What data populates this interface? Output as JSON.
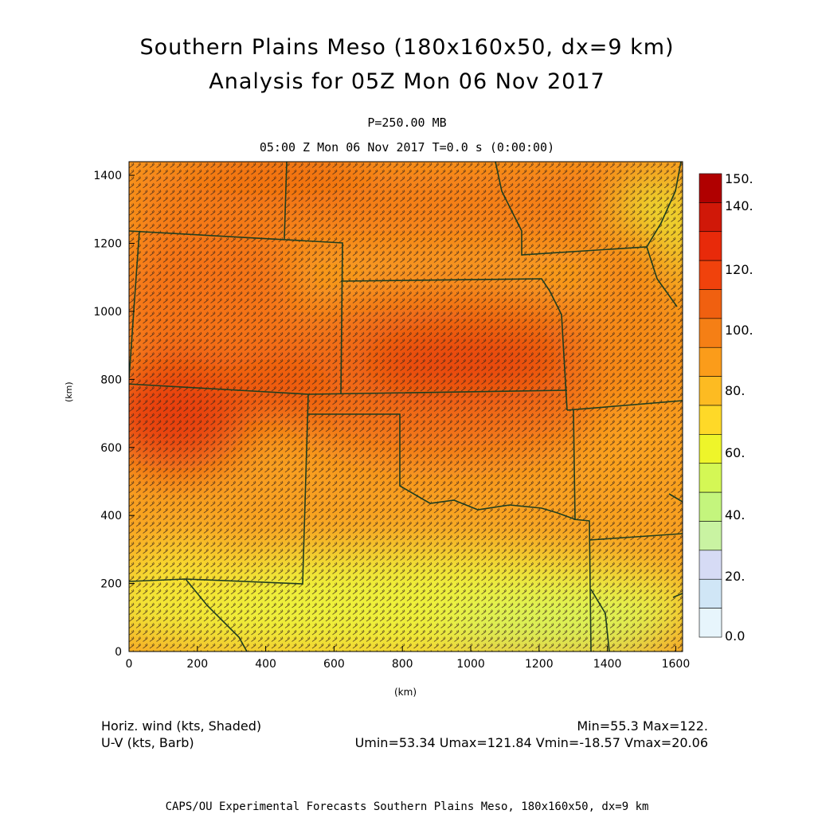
{
  "title": {
    "line1": "Southern Plains Meso (180x160x50, dx=9 km)",
    "line2": "Analysis for 05Z Mon 06 Nov 2017"
  },
  "subtitle": {
    "level": "P=250.00 MB",
    "time": "05:00 Z Mon 06 Nov 2017    T=0.0 s (0:00:00)"
  },
  "axes": {
    "xlabel": "(km)",
    "ylabel": "(km)",
    "xticks": [
      "0",
      "200",
      "400",
      "600",
      "800",
      "1000",
      "1200",
      "1400",
      "1600"
    ],
    "yticks": [
      "0",
      "200",
      "400",
      "600",
      "800",
      "1000",
      "1200",
      "1400"
    ],
    "xrange_km": [
      0,
      1620
    ],
    "yrange_km": [
      0,
      1440
    ]
  },
  "colorbar": {
    "labels": [
      "150.",
      "140.",
      "120.",
      "100.",
      "80.",
      "60.",
      "40.",
      "20.",
      "0.0"
    ],
    "colors": [
      "#b00000",
      "#d01808",
      "#e82a0a",
      "#f0420c",
      "#f06010",
      "#f57f15",
      "#fb9c1a",
      "#fdbb22",
      "#fed928",
      "#eef52a",
      "#d4f755",
      "#c4f57d",
      "#c9f3a2",
      "#d6dbf5",
      "#d0e6f6",
      "#e7f5fc"
    ]
  },
  "legend": {
    "field1": "Horiz. wind (kts, Shaded)",
    "field2": "U-V (kts, Barb)",
    "minmax": "Min=55.3 Max=122.",
    "uvstats": "Umin=53.34 Umax=121.84 Vmin=-18.57 Vmax=20.06"
  },
  "footer": "CAPS/OU Experimental Forecasts  Southern Plains Meso, 180x160x50, dx=9 km",
  "map_colors": {
    "border": "#1f3d1f",
    "base": "#f8a021",
    "barb": "#3a2418"
  }
}
